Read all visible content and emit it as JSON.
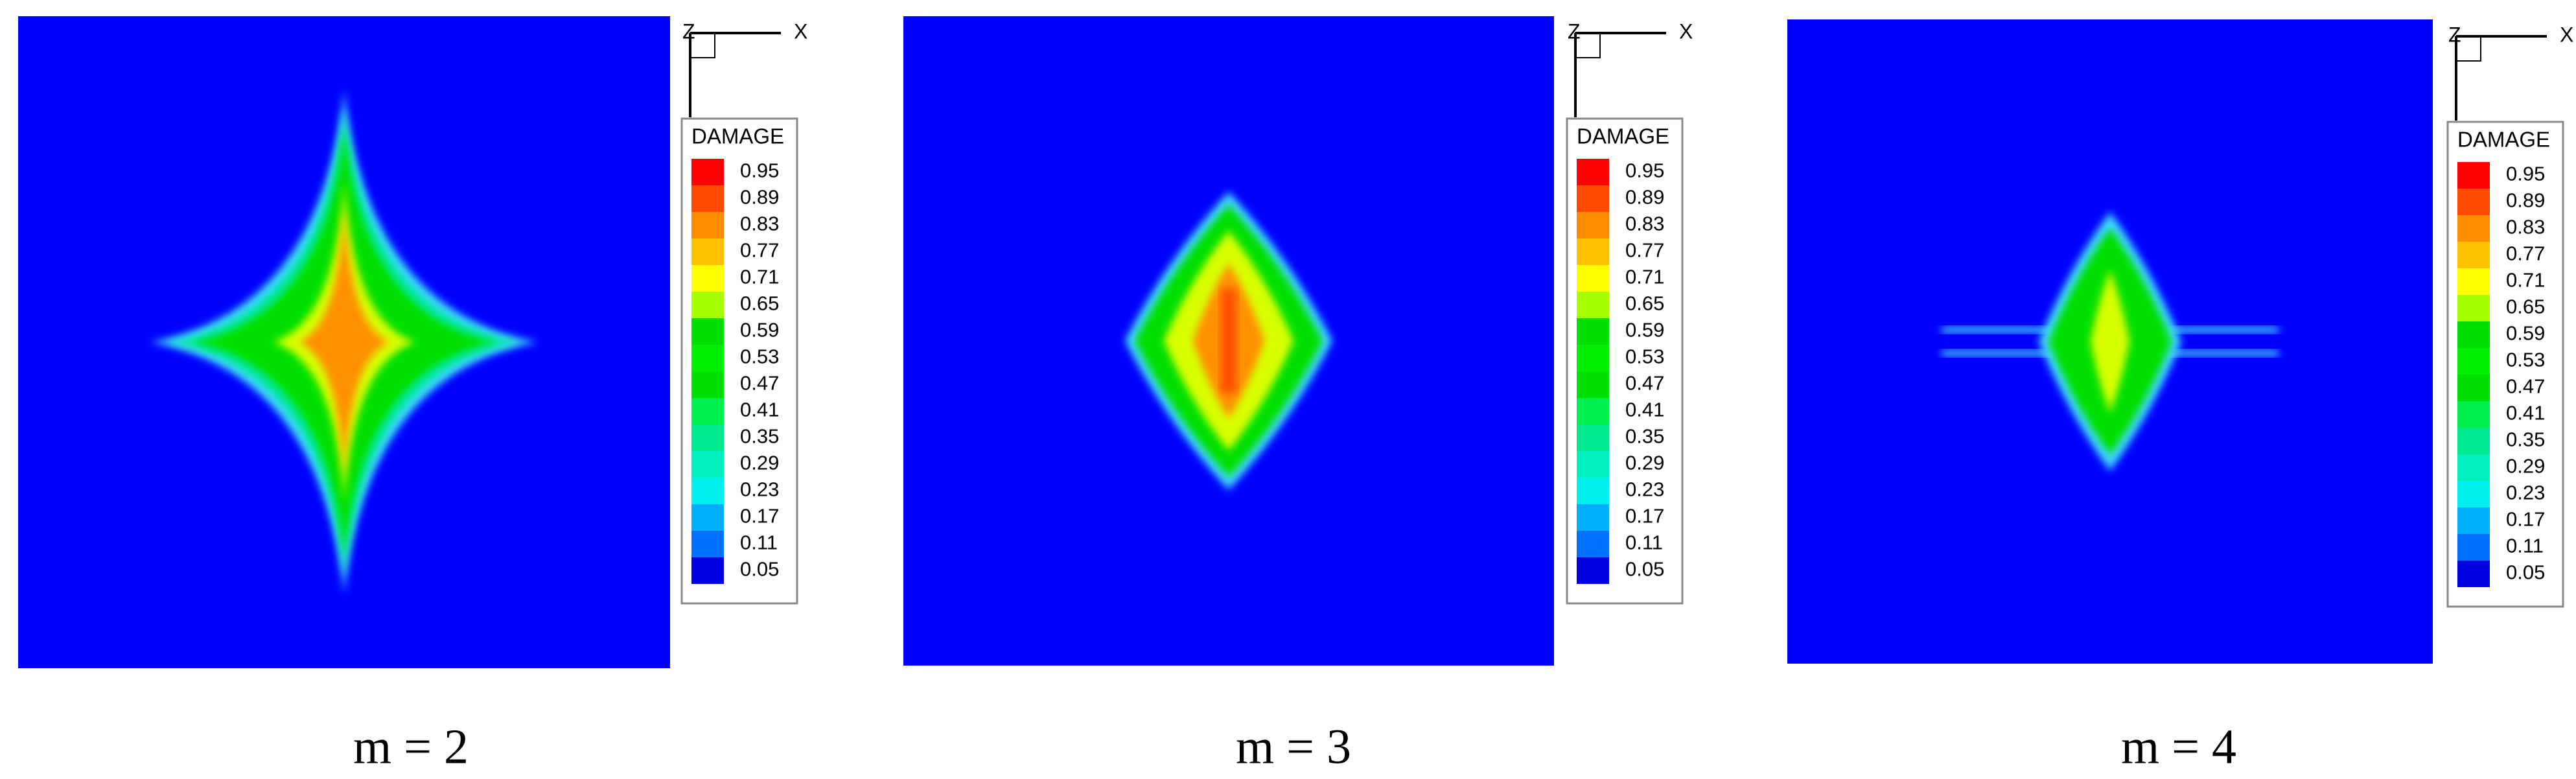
{
  "legend_colors": [
    "#ff0000",
    "#ff4a00",
    "#ff8c00",
    "#ffc000",
    "#ffff00",
    "#a8ff00",
    "#00e000",
    "#00f000",
    "#00e000",
    "#00f050",
    "#00e890",
    "#00f0c0",
    "#00f0f0",
    "#00b0ff",
    "#0070ff",
    "#0000e0"
  ],
  "panels": [
    {
      "caption": "m = 2",
      "legend_title": "DAMAGE",
      "axis_z": "Z",
      "axis_x": "X",
      "levels": [
        "0.95",
        "0.89",
        "0.83",
        "0.77",
        "0.71",
        "0.65",
        "0.59",
        "0.53",
        "0.47",
        "0.41",
        "0.35",
        "0.29",
        "0.23",
        "0.17",
        "0.11",
        "0.05"
      ]
    },
    {
      "caption": "m = 3",
      "legend_title": "DAMAGE",
      "axis_z": "Z",
      "axis_x": "X",
      "levels": [
        "0.95",
        "0.89",
        "0.83",
        "0.77",
        "0.71",
        "0.65",
        "0.59",
        "0.53",
        "0.47",
        "0.41",
        "0.35",
        "0.29",
        "0.23",
        "0.17",
        "0.11",
        "0.05"
      ]
    },
    {
      "caption": "m = 4",
      "legend_title": "DAMAGE",
      "axis_z": "Z",
      "axis_x": "X",
      "levels": [
        "0.95",
        "0.89",
        "0.83",
        "0.77",
        "0.71",
        "0.65",
        "0.59",
        "0.53",
        "0.47",
        "0.41",
        "0.35",
        "0.29",
        "0.23",
        "0.17",
        "0.11",
        "0.05"
      ]
    }
  ]
}
